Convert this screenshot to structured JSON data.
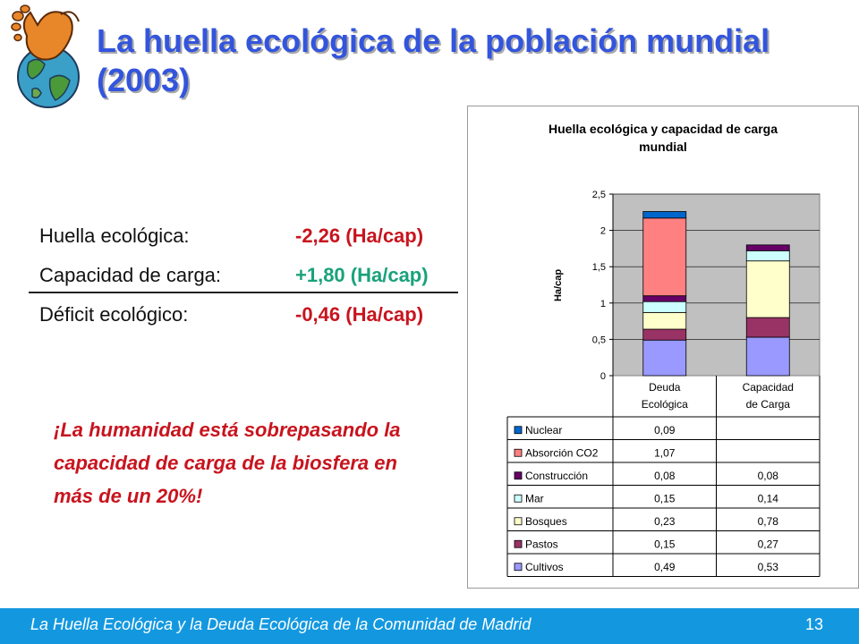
{
  "slide": {
    "title": "La huella ecológica de la población mundial (2003)"
  },
  "summary": {
    "rows": [
      {
        "label": "Huella ecológica:",
        "value": "-2,26 (Ha/cap)",
        "color": "#c8141e"
      },
      {
        "label": "Capacidad de carga:",
        "value": "+1,80 (Ha/cap)",
        "color": "#19a27a"
      },
      {
        "label": "Déficit ecológico:",
        "value": "-0,46 (Ha/cap)",
        "color": "#c8141e"
      }
    ]
  },
  "callout": {
    "text": "¡La humanidad está sobrepasando la capacidad de carga de la biosfera en más de un 20%!"
  },
  "footer": {
    "text": "La Huella Ecológica y la Deuda Ecológica de la Comunidad de Madrid",
    "page": "13",
    "color": "#1398e0"
  },
  "chart_data": {
    "type": "bar",
    "stacked": true,
    "title": "Huella ecológica y capacidad de carga mundial",
    "ylabel": "Ha/cap",
    "ylim": [
      0,
      2.5
    ],
    "yticks": [
      "0",
      "0,5",
      "1",
      "1,5",
      "2",
      "2,5"
    ],
    "categories": [
      "Deuda Ecológica",
      "Capacidad de Carga"
    ],
    "categories_lines": [
      [
        "Deuda",
        "Ecológica"
      ],
      [
        "Capacidad",
        "de Carga"
      ]
    ],
    "plot_area_color": "#c0c0c0",
    "grid": "horizontal",
    "series": [
      {
        "name": "Cultivos",
        "values": [
          0.49,
          0.53
        ],
        "labels": [
          "0,49",
          "0,53"
        ],
        "color": "#9999ff"
      },
      {
        "name": "Pastos",
        "values": [
          0.15,
          0.27
        ],
        "labels": [
          "0,15",
          "0,27"
        ],
        "color": "#993366"
      },
      {
        "name": "Bosques",
        "values": [
          0.23,
          0.78
        ],
        "labels": [
          "0,23",
          "0,78"
        ],
        "color": "#ffffcc"
      },
      {
        "name": "Mar",
        "values": [
          0.15,
          0.14
        ],
        "labels": [
          "0,15",
          "0,14"
        ],
        "color": "#ccffff"
      },
      {
        "name": "Construcción",
        "values": [
          0.08,
          0.08
        ],
        "labels": [
          "0,08",
          "0,08"
        ],
        "color": "#660066"
      },
      {
        "name": "Absorción CO2",
        "values": [
          1.07,
          null
        ],
        "labels": [
          "1,07",
          ""
        ],
        "color": "#ff8080"
      },
      {
        "name": "Nuclear",
        "values": [
          0.09,
          null
        ],
        "labels": [
          "0,09",
          ""
        ],
        "color": "#0066cc"
      }
    ]
  }
}
